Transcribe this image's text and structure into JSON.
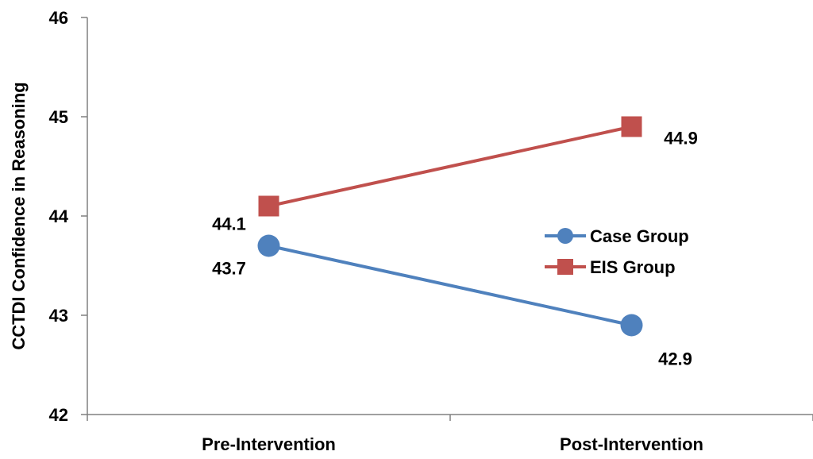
{
  "chart_data": {
    "type": "line",
    "categories": [
      "Pre-Intervention",
      "Post-Intervention"
    ],
    "series": [
      {
        "name": "Case Group",
        "values": [
          43.7,
          42.9
        ],
        "color": "#4F81BD",
        "marker": "circle"
      },
      {
        "name": "EIS Group",
        "values": [
          44.1,
          44.9
        ],
        "color": "#C0504D",
        "marker": "square"
      }
    ],
    "data_labels": [
      "43.7",
      "42.9",
      "44.1",
      "44.9"
    ],
    "xlabel": "",
    "ylabel": "CCTDI Confidence in Reasoning",
    "ylim": [
      42,
      46
    ],
    "yticks": [
      "42",
      "43",
      "44",
      "45",
      "46"
    ],
    "grid": false,
    "legend_position": "right"
  }
}
